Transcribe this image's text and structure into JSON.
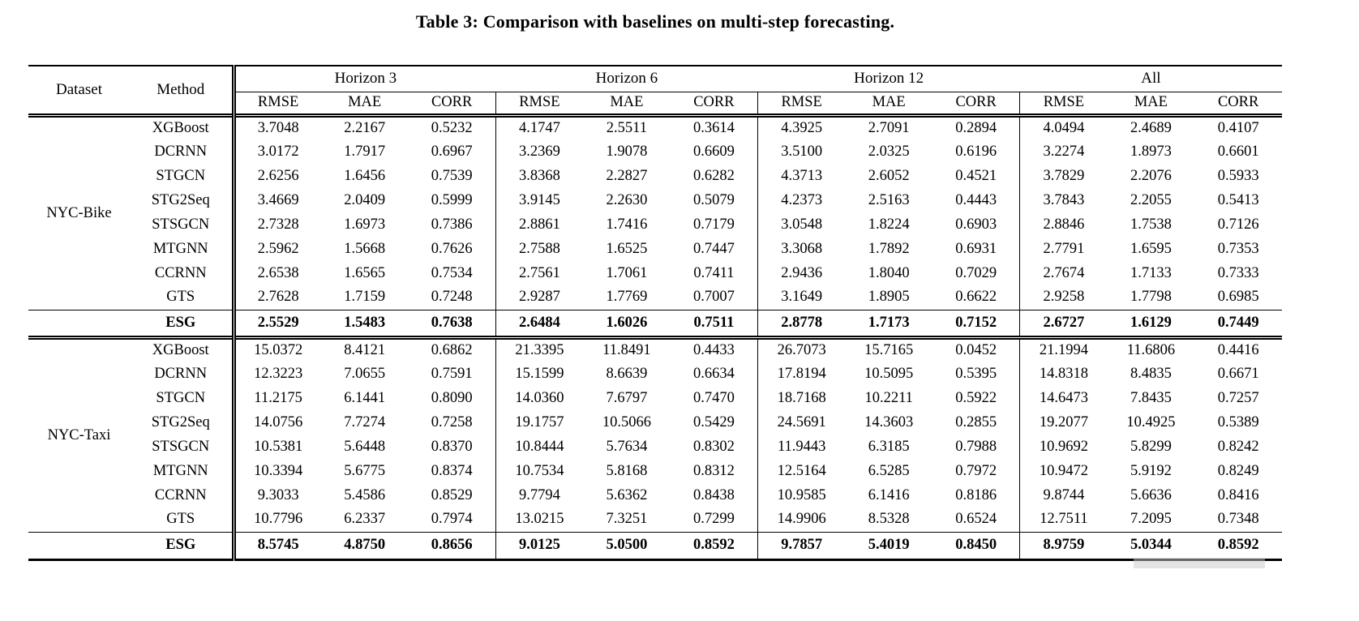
{
  "page": {
    "background": "#ffffff",
    "text_color": "#000000",
    "rule_color": "#000000",
    "artifact_color": "#c9c9c9"
  },
  "caption": "Table 3: Comparison with baselines on multi-step forecasting.",
  "table": {
    "header": {
      "dataset": "Dataset",
      "method": "Method",
      "groups": [
        "Horizon 3",
        "Horizon 6",
        "Horizon 12",
        "All"
      ],
      "metrics": [
        "RMSE",
        "MAE",
        "CORR"
      ]
    },
    "sections": [
      {
        "dataset": "NYC-Bike",
        "rows": [
          {
            "method": "XGBoost",
            "bold": false,
            "values": [
              "3.7048",
              "2.2167",
              "0.5232",
              "4.1747",
              "2.5511",
              "0.3614",
              "4.3925",
              "2.7091",
              "0.2894",
              "4.0494",
              "2.4689",
              "0.4107"
            ]
          },
          {
            "method": "DCRNN",
            "bold": false,
            "values": [
              "3.0172",
              "1.7917",
              "0.6967",
              "3.2369",
              "1.9078",
              "0.6609",
              "3.5100",
              "2.0325",
              "0.6196",
              "3.2274",
              "1.8973",
              "0.6601"
            ]
          },
          {
            "method": "STGCN",
            "bold": false,
            "values": [
              "2.6256",
              "1.6456",
              "0.7539",
              "3.8368",
              "2.2827",
              "0.6282",
              "4.3713",
              "2.6052",
              "0.4521",
              "3.7829",
              "2.2076",
              "0.5933"
            ]
          },
          {
            "method": "STG2Seq",
            "bold": false,
            "values": [
              "3.4669",
              "2.0409",
              "0.5999",
              "3.9145",
              "2.2630",
              "0.5079",
              "4.2373",
              "2.5163",
              "0.4443",
              "3.7843",
              "2.2055",
              "0.5413"
            ]
          },
          {
            "method": "STSGCN",
            "bold": false,
            "values": [
              "2.7328",
              "1.6973",
              "0.7386",
              "2.8861",
              "1.7416",
              "0.7179",
              "3.0548",
              "1.8224",
              "0.6903",
              "2.8846",
              "1.7538",
              "0.7126"
            ]
          },
          {
            "method": "MTGNN",
            "bold": false,
            "values": [
              "2.5962",
              "1.5668",
              "0.7626",
              "2.7588",
              "1.6525",
              "0.7447",
              "3.3068",
              "1.7892",
              "0.6931",
              "2.7791",
              "1.6595",
              "0.7353"
            ]
          },
          {
            "method": "CCRNN",
            "bold": false,
            "values": [
              "2.6538",
              "1.6565",
              "0.7534",
              "2.7561",
              "1.7061",
              "0.7411",
              "2.9436",
              "1.8040",
              "0.7029",
              "2.7674",
              "1.7133",
              "0.7333"
            ]
          },
          {
            "method": "GTS",
            "bold": false,
            "values": [
              "2.7628",
              "1.7159",
              "0.7248",
              "2.9287",
              "1.7769",
              "0.7007",
              "3.1649",
              "1.8905",
              "0.6622",
              "2.9258",
              "1.7798",
              "0.6985"
            ]
          },
          {
            "method": "ESG",
            "bold": true,
            "values": [
              "2.5529",
              "1.5483",
              "0.7638",
              "2.6484",
              "1.6026",
              "0.7511",
              "2.8778",
              "1.7173",
              "0.7152",
              "2.6727",
              "1.6129",
              "0.7449"
            ]
          }
        ]
      },
      {
        "dataset": "NYC-Taxi",
        "rows": [
          {
            "method": "XGBoost",
            "bold": false,
            "values": [
              "15.0372",
              "8.4121",
              "0.6862",
              "21.3395",
              "11.8491",
              "0.4433",
              "26.7073",
              "15.7165",
              "0.0452",
              "21.1994",
              "11.6806",
              "0.4416"
            ]
          },
          {
            "method": "DCRNN",
            "bold": false,
            "values": [
              "12.3223",
              "7.0655",
              "0.7591",
              "15.1599",
              "8.6639",
              "0.6634",
              "17.8194",
              "10.5095",
              "0.5395",
              "14.8318",
              "8.4835",
              "0.6671"
            ]
          },
          {
            "method": "STGCN",
            "bold": false,
            "values": [
              "11.2175",
              "6.1441",
              "0.8090",
              "14.0360",
              "7.6797",
              "0.7470",
              "18.7168",
              "10.2211",
              "0.5922",
              "14.6473",
              "7.8435",
              "0.7257"
            ]
          },
          {
            "method": "STG2Seq",
            "bold": false,
            "values": [
              "14.0756",
              "7.7274",
              "0.7258",
              "19.1757",
              "10.5066",
              "0.5429",
              "24.5691",
              "14.3603",
              "0.2855",
              "19.2077",
              "10.4925",
              "0.5389"
            ]
          },
          {
            "method": "STSGCN",
            "bold": false,
            "values": [
              "10.5381",
              "5.6448",
              "0.8370",
              "10.8444",
              "5.7634",
              "0.8302",
              "11.9443",
              "6.3185",
              "0.7988",
              "10.9692",
              "5.8299",
              "0.8242"
            ]
          },
          {
            "method": "MTGNN",
            "bold": false,
            "values": [
              "10.3394",
              "5.6775",
              "0.8374",
              "10.7534",
              "5.8168",
              "0.8312",
              "12.5164",
              "6.5285",
              "0.7972",
              "10.9472",
              "5.9192",
              "0.8249"
            ]
          },
          {
            "method": "CCRNN",
            "bold": false,
            "values": [
              "9.3033",
              "5.4586",
              "0.8529",
              "9.7794",
              "5.6362",
              "0.8438",
              "10.9585",
              "6.1416",
              "0.8186",
              "9.8744",
              "5.6636",
              "0.8416"
            ]
          },
          {
            "method": "GTS",
            "bold": false,
            "values": [
              "10.7796",
              "6.2337",
              "0.7974",
              "13.0215",
              "7.3251",
              "0.7299",
              "14.9906",
              "8.5328",
              "0.6524",
              "12.7511",
              "7.2095",
              "0.7348"
            ]
          },
          {
            "method": "ESG",
            "bold": true,
            "values": [
              "8.5745",
              "4.8750",
              "0.8656",
              "9.0125",
              "5.0500",
              "0.8592",
              "9.7857",
              "5.4019",
              "0.8450",
              "8.9759",
              "5.0344",
              "0.8592"
            ]
          }
        ]
      }
    ]
  }
}
